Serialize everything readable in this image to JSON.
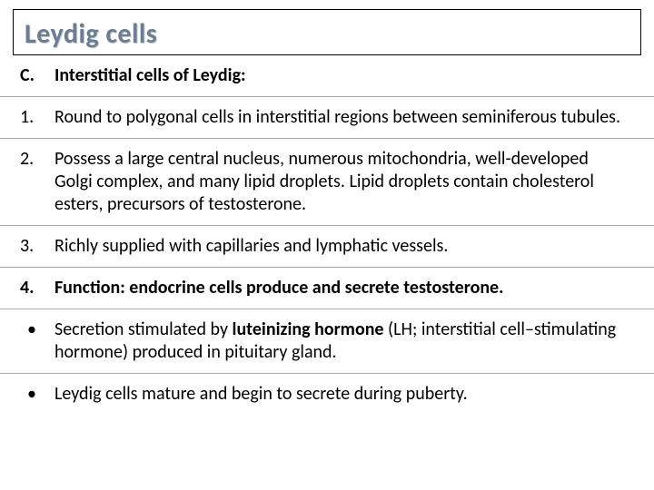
{
  "colors": {
    "background": "#ffffff",
    "text": "#000000",
    "title": "#6b7d94",
    "title_shadow": "#c9c9c9",
    "divider": "#a9a9a9",
    "title_border": "#000000"
  },
  "typography": {
    "family": "Calibri",
    "title_size_pt": 30,
    "body_size_pt": 20,
    "title_weight": 700
  },
  "title": "Leydig cells",
  "heading": {
    "marker": "C.",
    "text": "Interstitial cells of Leydig:"
  },
  "items": [
    {
      "marker": "1.",
      "text": "Round to polygonal cells in interstitial regions between seminiferous tubules."
    },
    {
      "marker": "2.",
      "text": "Possess a large central nucleus, numerous mitochondria, well-developed Golgi complex, and many lipid droplets. Lipid droplets contain cholesterol esters, precursors of testosterone."
    },
    {
      "marker": "3.",
      "text": "Richly supplied with capillaries and lymphatic vessels."
    }
  ],
  "function_item": {
    "marker": "4.",
    "prefix": "Function",
    "mid1": ": ",
    "bold2": "endocrine cells",
    "mid2": " produce and secrete ",
    "bold3": "testosterone",
    "suffix": "."
  },
  "bullets": [
    {
      "marker": "•",
      "pre": "Secretion stimulated by ",
      "bold": "luteinizing hormone",
      "post": " (LH; interstitial cell–stimulating hormone) produced in pituitary gland."
    },
    {
      "marker": "•",
      "pre": "",
      "bold": "",
      "post": "Leydig cells mature and begin to secrete during puberty."
    }
  ]
}
